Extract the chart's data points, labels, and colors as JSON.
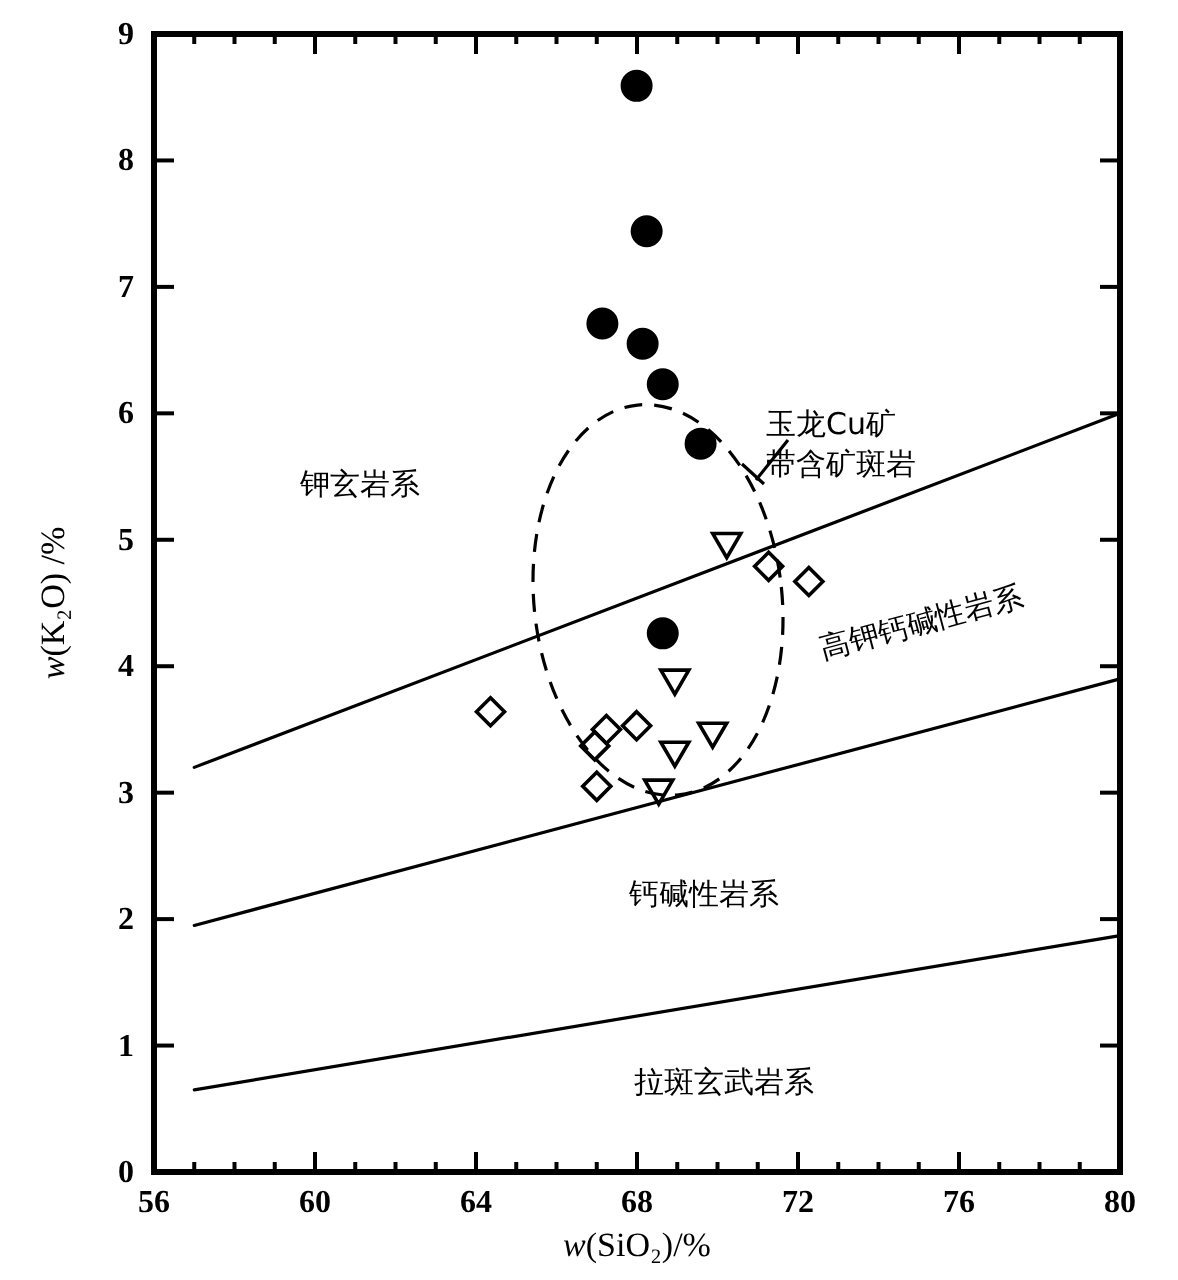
{
  "chart_data": {
    "type": "scatter",
    "xlabel": "w(SiO₂)/%",
    "ylabel": "w(K₂O) /%",
    "xlim": [
      56,
      80
    ],
    "ylim": [
      0,
      9
    ],
    "xticks": [
      56,
      {
        "value": 57,
        "label": null
      },
      {
        "value": 58,
        "label": null
      },
      {
        "value": 59,
        "label": null
      },
      60,
      {
        "value": 61,
        "label": null
      },
      {
        "value": 62,
        "label": null
      },
      {
        "value": 63,
        "label": null
      },
      64,
      {
        "value": 65,
        "label": null
      },
      {
        "value": 66,
        "label": null
      },
      {
        "value": 67,
        "label": null
      },
      68,
      {
        "value": 69,
        "label": null
      },
      {
        "value": 70,
        "label": null
      },
      {
        "value": 71,
        "label": null
      },
      72,
      {
        "value": 73,
        "label": null
      },
      {
        "value": 74,
        "label": null
      },
      {
        "value": 75,
        "label": null
      },
      76,
      {
        "value": 77,
        "label": null
      },
      {
        "value": 78,
        "label": null
      },
      {
        "value": 79,
        "label": null
      },
      80
    ],
    "yticks": [
      0,
      1,
      2,
      3,
      4,
      5,
      6,
      7,
      8,
      9
    ],
    "grid": false,
    "series": [
      {
        "type": "scatter",
        "marker": "circle",
        "color": "#000000",
        "x": [
          67.99,
          68.24,
          67.14,
          68.14,
          68.64,
          69.58,
          68.64
        ],
        "values": [
          8.59,
          7.44,
          6.71,
          6.55,
          6.23,
          5.76,
          4.26
        ]
      },
      {
        "type": "scatter",
        "marker": "triangle",
        "color": "#000000",
        "x": [
          70.23,
          68.94,
          69.88,
          68.94,
          68.54
        ],
        "values": [
          4.97,
          3.89,
          3.47,
          3.32,
          3.02
        ]
      },
      {
        "type": "scatter",
        "marker": "diamond",
        "color": "#000000",
        "x": [
          64.36,
          67.24,
          67.99,
          66.95,
          67.0,
          71.27,
          72.27
        ],
        "values": [
          3.64,
          3.5,
          3.53,
          3.37,
          3.05,
          4.79,
          4.67
        ]
      },
      {
        "type": "line",
        "line_style": "solid",
        "color": "#000000",
        "x": [
          57,
          80
        ],
        "values": [
          3.2,
          6.0
        ]
      },
      {
        "type": "line",
        "line_style": "solid",
        "color": "#000000",
        "x": [
          57,
          80
        ],
        "values": [
          1.95,
          3.9
        ]
      },
      {
        "type": "line",
        "line_style": "solid",
        "color": "#000000",
        "x": [
          57,
          80
        ],
        "values": [
          0.65,
          1.87
        ]
      }
    ],
    "annotations": [
      "玉龙Cu矿带含矿斑岩",
      "钾玄岩系",
      "高钾钙碱性岩系",
      "钙碱性岩系",
      "拉斑玄武岩系"
    ]
  }
}
